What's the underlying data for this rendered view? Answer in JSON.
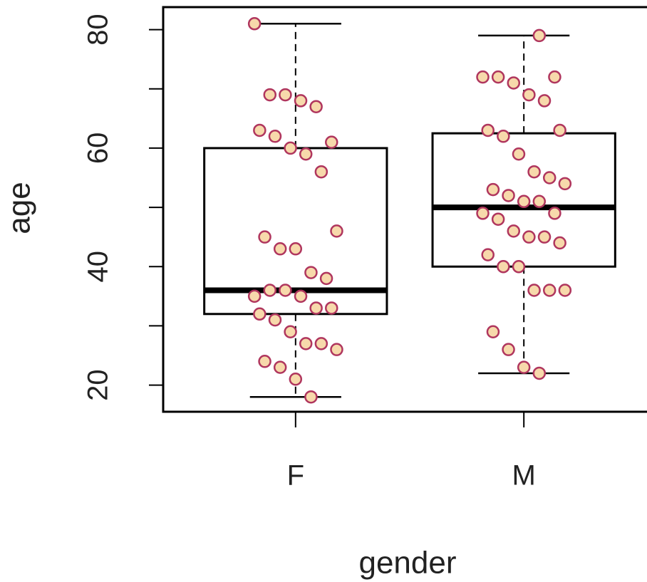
{
  "chart_data": {
    "type": "box",
    "xlabel": "gender",
    "ylabel": "age",
    "categories": [
      "F",
      "M"
    ],
    "boxes": [
      {
        "whislo": 18,
        "q1": 32,
        "med": 36,
        "q3": 60,
        "whishi": 81
      },
      {
        "whislo": 22,
        "q1": 40,
        "med": 50,
        "q3": 62.5,
        "whishi": 79
      }
    ],
    "points": [
      [
        81,
        69,
        69,
        68,
        67,
        61,
        63,
        62,
        60,
        59,
        56,
        46,
        45,
        43,
        43,
        39,
        38,
        35,
        36,
        36,
        35,
        33,
        33,
        32,
        31,
        29,
        27,
        27,
        26,
        24,
        23,
        21,
        18
      ],
      [
        79,
        72,
        72,
        72,
        71,
        69,
        68,
        63,
        63,
        62,
        59,
        56,
        55,
        54,
        53,
        52,
        51,
        51,
        49,
        49,
        48,
        46,
        45,
        45,
        44,
        42,
        40,
        40,
        36,
        36,
        36,
        29,
        26,
        23,
        22
      ]
    ],
    "point_fill": "#f7d9ab",
    "point_edge": "#b0365e",
    "box_color": "#000000",
    "ylim": [
      15.5,
      83.8
    ],
    "yticks": [
      20,
      {
        "value": 30,
        "label": null
      },
      40,
      {
        "value": 50,
        "label": null
      },
      60,
      {
        "value": 70,
        "label": null
      },
      80
    ]
  }
}
